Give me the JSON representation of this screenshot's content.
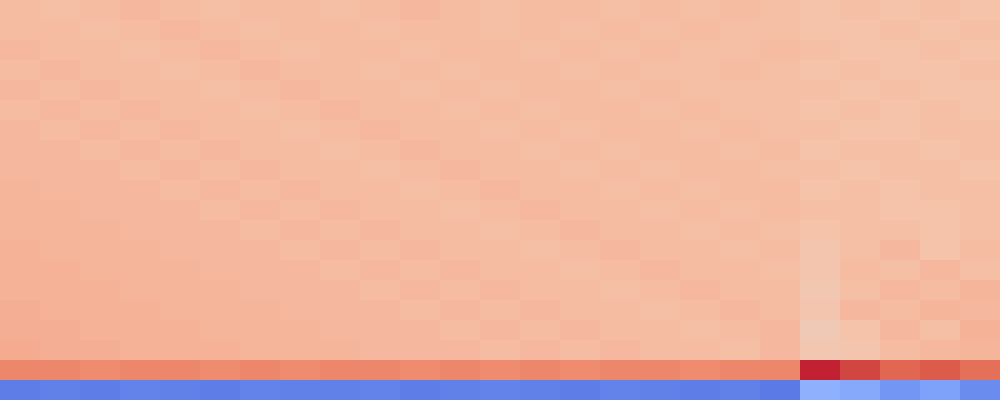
{
  "chart_data": {
    "type": "heatmap",
    "tick_labels": false,
    "grid": false,
    "zlim": [
      0,
      1
    ],
    "cells": [
      [
        0.65,
        0.64,
        0.65,
        0.66,
        0.65,
        0.64,
        0.65,
        0.65,
        0.64,
        0.65,
        0.66,
        0.65,
        0.64,
        0.65,
        0.65,
        0.64,
        0.65,
        0.64,
        0.65,
        0.64,
        0.63,
        0.64,
        0.63,
        0.64,
        0.63
      ],
      [
        0.65,
        0.65,
        0.64,
        0.65,
        0.66,
        0.65,
        0.64,
        0.65,
        0.65,
        0.64,
        0.65,
        0.65,
        0.64,
        0.65,
        0.64,
        0.65,
        0.64,
        0.65,
        0.64,
        0.64,
        0.63,
        0.63,
        0.64,
        0.63,
        0.64
      ],
      [
        0.66,
        0.65,
        0.65,
        0.64,
        0.65,
        0.66,
        0.65,
        0.64,
        0.65,
        0.65,
        0.64,
        0.65,
        0.65,
        0.64,
        0.65,
        0.64,
        0.65,
        0.64,
        0.64,
        0.65,
        0.64,
        0.63,
        0.63,
        0.64,
        0.63
      ],
      [
        0.65,
        0.66,
        0.65,
        0.65,
        0.64,
        0.65,
        0.66,
        0.65,
        0.65,
        0.64,
        0.65,
        0.64,
        0.65,
        0.65,
        0.64,
        0.65,
        0.64,
        0.64,
        0.65,
        0.64,
        0.63,
        0.64,
        0.63,
        0.63,
        0.64
      ],
      [
        0.66,
        0.65,
        0.66,
        0.65,
        0.65,
        0.64,
        0.65,
        0.66,
        0.65,
        0.65,
        0.64,
        0.65,
        0.64,
        0.65,
        0.65,
        0.64,
        0.65,
        0.64,
        0.64,
        0.64,
        0.64,
        0.63,
        0.64,
        0.63,
        0.63
      ],
      [
        0.65,
        0.66,
        0.65,
        0.66,
        0.65,
        0.65,
        0.64,
        0.65,
        0.66,
        0.65,
        0.65,
        0.64,
        0.65,
        0.64,
        0.65,
        0.65,
        0.64,
        0.65,
        0.64,
        0.64,
        0.63,
        0.64,
        0.63,
        0.64,
        0.63
      ],
      [
        0.66,
        0.65,
        0.66,
        0.65,
        0.66,
        0.65,
        0.65,
        0.64,
        0.65,
        0.66,
        0.65,
        0.65,
        0.64,
        0.65,
        0.64,
        0.65,
        0.65,
        0.64,
        0.65,
        0.64,
        0.64,
        0.63,
        0.63,
        0.64,
        0.64
      ],
      [
        0.66,
        0.66,
        0.65,
        0.66,
        0.65,
        0.66,
        0.65,
        0.65,
        0.64,
        0.65,
        0.66,
        0.65,
        0.65,
        0.64,
        0.65,
        0.64,
        0.65,
        0.65,
        0.64,
        0.65,
        0.63,
        0.64,
        0.64,
        0.63,
        0.64
      ],
      [
        0.66,
        0.66,
        0.66,
        0.65,
        0.66,
        0.65,
        0.66,
        0.65,
        0.65,
        0.64,
        0.65,
        0.66,
        0.65,
        0.65,
        0.64,
        0.65,
        0.64,
        0.65,
        0.65,
        0.64,
        0.64,
        0.63,
        0.64,
        0.64,
        0.63
      ],
      [
        0.67,
        0.66,
        0.66,
        0.66,
        0.65,
        0.66,
        0.65,
        0.66,
        0.65,
        0.65,
        0.64,
        0.65,
        0.66,
        0.65,
        0.65,
        0.64,
        0.65,
        0.64,
        0.65,
        0.65,
        0.63,
        0.64,
        0.63,
        0.64,
        0.64
      ],
      [
        0.67,
        0.67,
        0.66,
        0.66,
        0.66,
        0.65,
        0.66,
        0.65,
        0.66,
        0.65,
        0.65,
        0.64,
        0.65,
        0.66,
        0.65,
        0.65,
        0.64,
        0.65,
        0.64,
        0.65,
        0.64,
        0.64,
        0.63,
        0.63,
        0.64
      ],
      [
        0.67,
        0.67,
        0.67,
        0.66,
        0.66,
        0.66,
        0.65,
        0.66,
        0.65,
        0.66,
        0.65,
        0.65,
        0.64,
        0.65,
        0.66,
        0.65,
        0.65,
        0.64,
        0.65,
        0.64,
        0.63,
        0.64,
        0.64,
        0.63,
        0.64
      ],
      [
        0.68,
        0.67,
        0.67,
        0.67,
        0.66,
        0.66,
        0.66,
        0.65,
        0.66,
        0.65,
        0.66,
        0.65,
        0.65,
        0.64,
        0.65,
        0.66,
        0.65,
        0.65,
        0.64,
        0.65,
        0.62,
        0.64,
        0.66,
        0.63,
        0.65
      ],
      [
        0.68,
        0.68,
        0.67,
        0.67,
        0.67,
        0.66,
        0.66,
        0.66,
        0.65,
        0.66,
        0.65,
        0.66,
        0.65,
        0.65,
        0.64,
        0.65,
        0.66,
        0.65,
        0.65,
        0.64,
        0.62,
        0.65,
        0.64,
        0.66,
        0.64
      ],
      [
        0.68,
        0.68,
        0.68,
        0.67,
        0.67,
        0.67,
        0.66,
        0.66,
        0.66,
        0.65,
        0.66,
        0.65,
        0.66,
        0.65,
        0.65,
        0.64,
        0.65,
        0.66,
        0.65,
        0.65,
        0.61,
        0.64,
        0.66,
        0.65,
        0.67
      ],
      [
        0.69,
        0.68,
        0.68,
        0.68,
        0.67,
        0.67,
        0.67,
        0.66,
        0.66,
        0.66,
        0.65,
        0.66,
        0.65,
        0.66,
        0.65,
        0.65,
        0.64,
        0.65,
        0.66,
        0.65,
        0.62,
        0.66,
        0.65,
        0.67,
        0.66
      ],
      [
        0.69,
        0.69,
        0.68,
        0.68,
        0.68,
        0.67,
        0.67,
        0.67,
        0.66,
        0.66,
        0.66,
        0.65,
        0.66,
        0.65,
        0.66,
        0.65,
        0.65,
        0.64,
        0.65,
        0.66,
        0.6,
        0.63,
        0.66,
        0.64,
        0.68
      ],
      [
        0.7,
        0.69,
        0.69,
        0.68,
        0.68,
        0.68,
        0.67,
        0.67,
        0.67,
        0.66,
        0.66,
        0.66,
        0.65,
        0.66,
        0.65,
        0.66,
        0.65,
        0.65,
        0.64,
        0.66,
        0.61,
        0.62,
        0.65,
        0.66,
        0.67
      ],
      [
        0.79,
        0.79,
        0.78,
        0.79,
        0.79,
        0.78,
        0.79,
        0.78,
        0.79,
        0.79,
        0.78,
        0.79,
        0.78,
        0.79,
        0.78,
        0.79,
        0.79,
        0.78,
        0.79,
        0.79,
        0.96,
        0.91,
        0.86,
        0.88,
        0.84
      ],
      [
        0.14,
        0.15,
        0.14,
        0.16,
        0.15,
        0.14,
        0.16,
        0.15,
        0.15,
        0.16,
        0.14,
        0.15,
        0.16,
        0.15,
        0.14,
        0.16,
        0.15,
        0.14,
        0.15,
        0.13,
        0.32,
        0.29,
        0.22,
        0.26,
        0.19
      ]
    ]
  }
}
